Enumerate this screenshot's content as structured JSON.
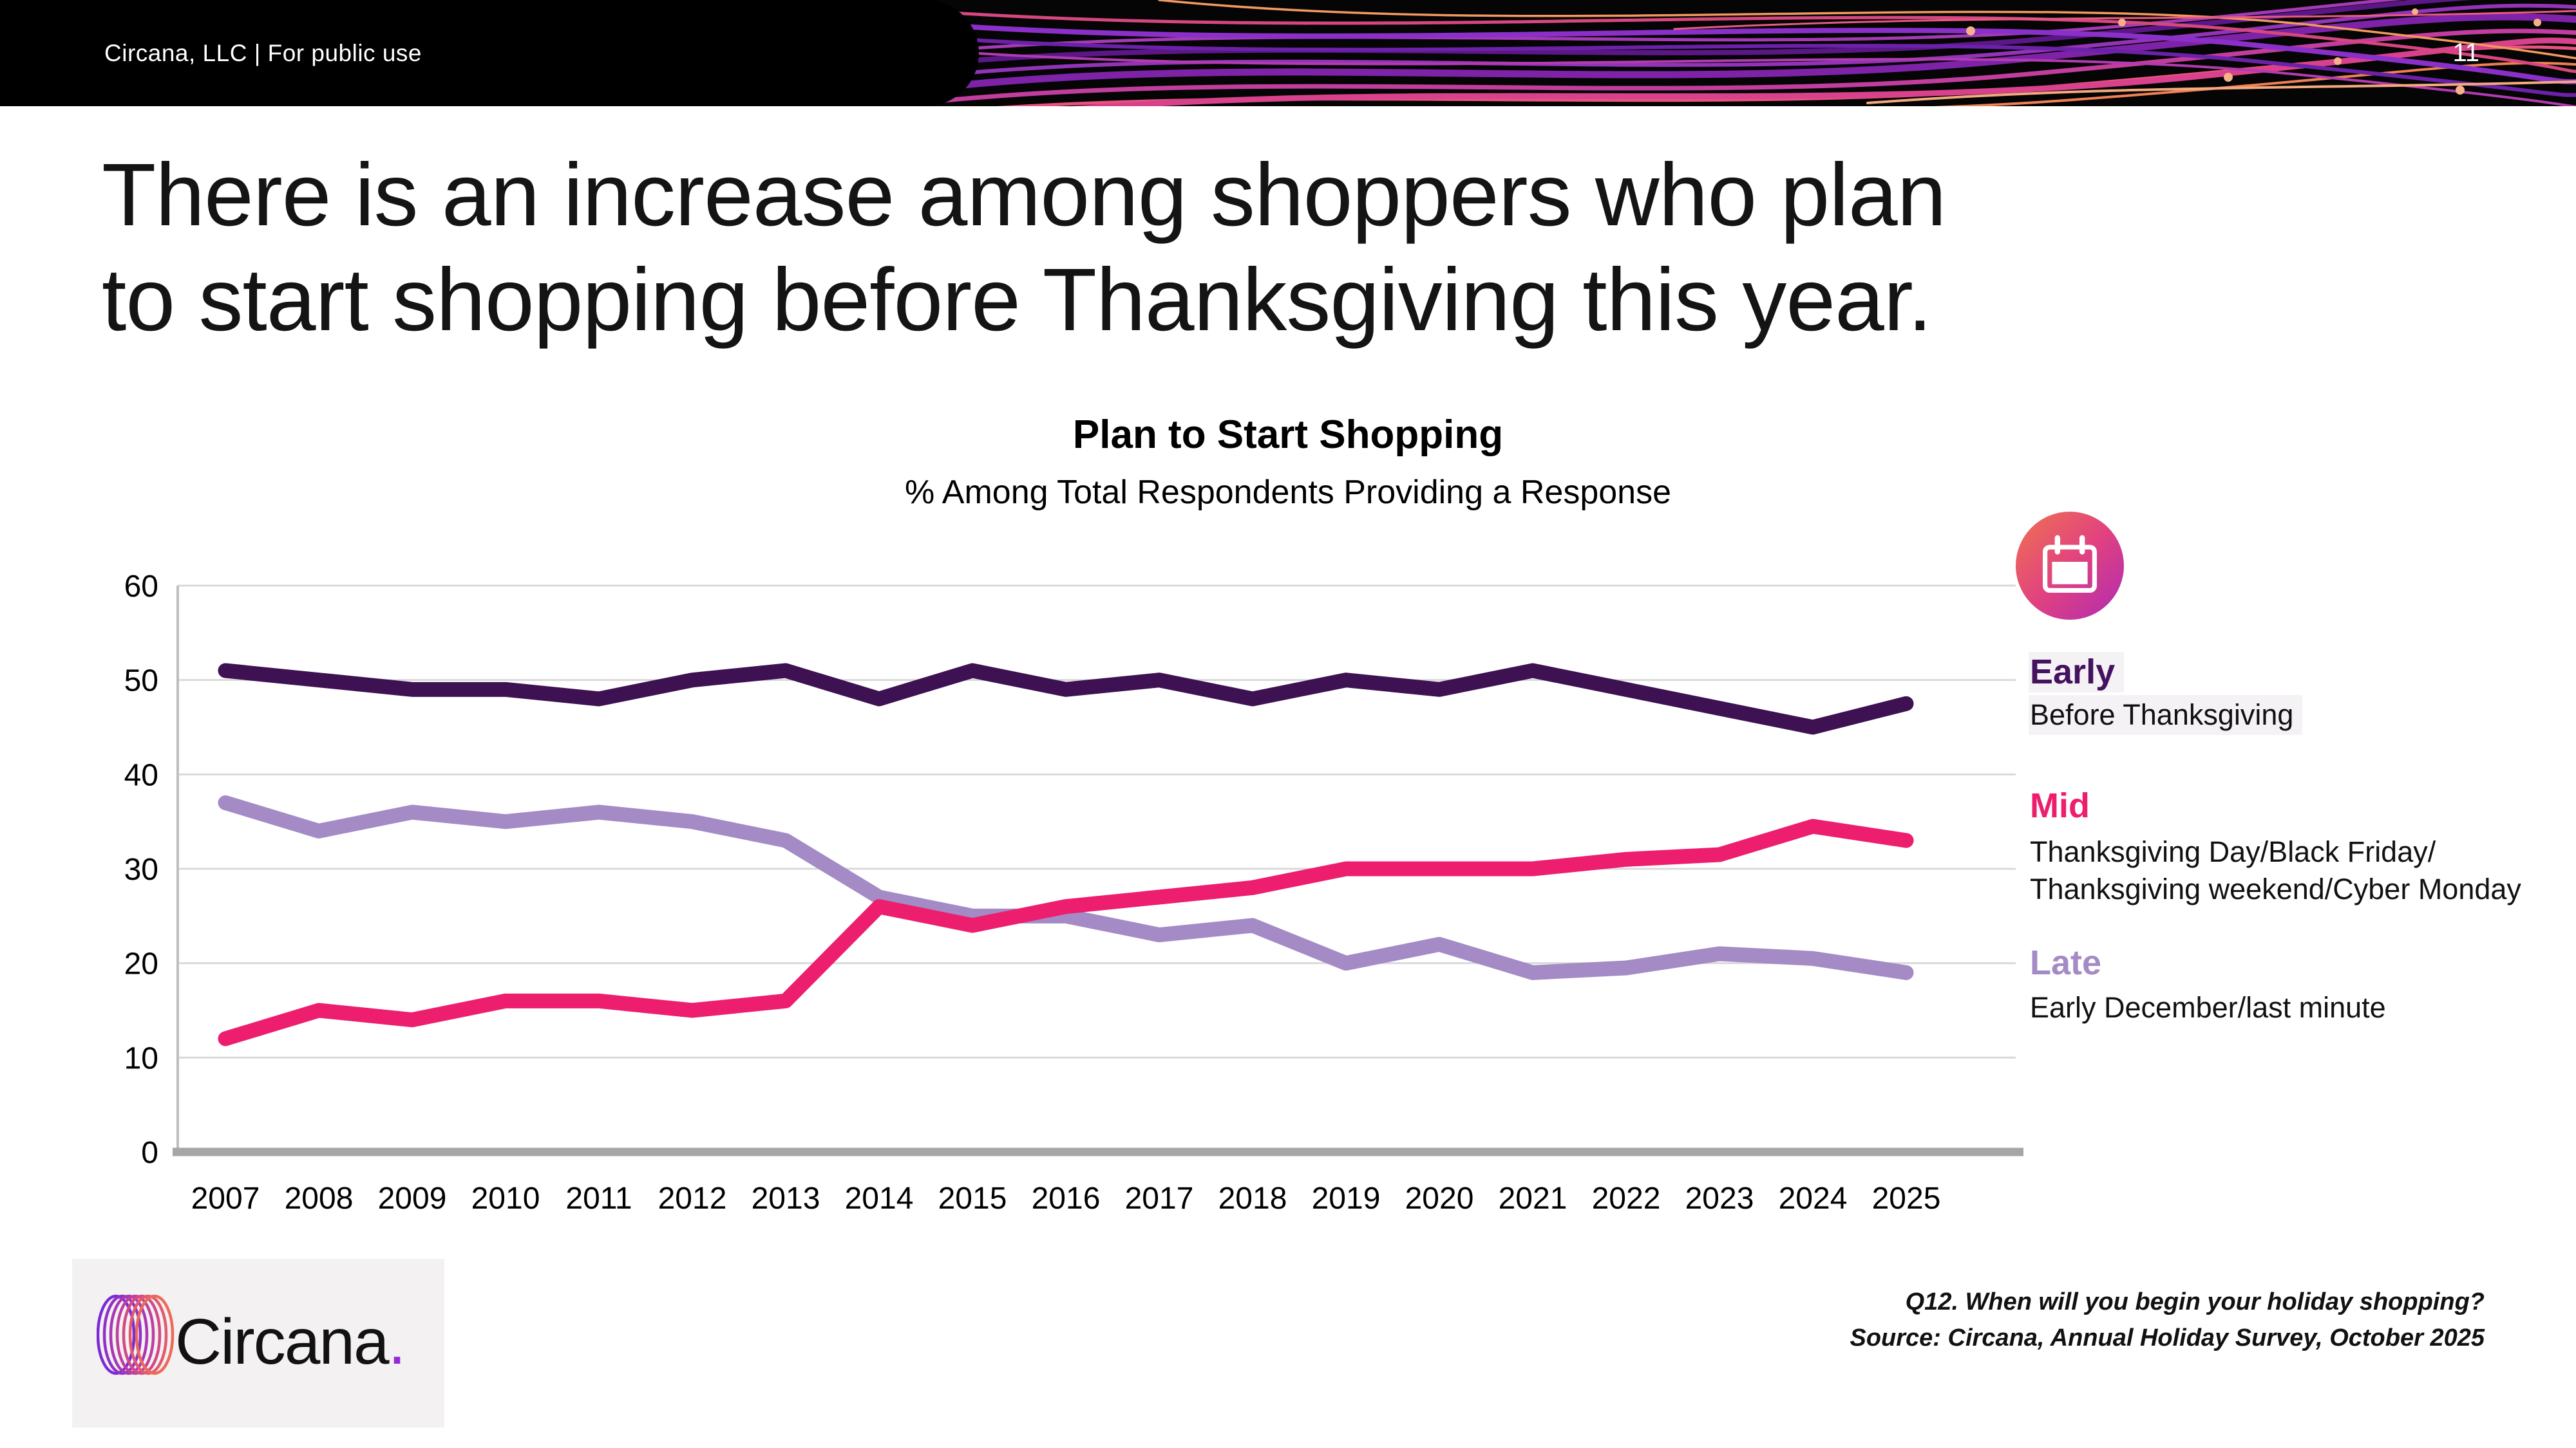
{
  "header": {
    "left_text": "Circana, LLC |  For public use",
    "page_number": "11"
  },
  "title": {
    "line1": "There is an increase among shoppers who plan",
    "line2": "to start shopping before Thanksgiving this year."
  },
  "chart": {
    "title": "Plan to Start Shopping",
    "subtitle": "% Among Total Respondents Providing a Response"
  },
  "chart_data": {
    "type": "line",
    "categories": [
      "2007",
      "2008",
      "2009",
      "2010",
      "2011",
      "2012",
      "2013",
      "2014",
      "2015",
      "2016",
      "2017",
      "2018",
      "2019",
      "2020",
      "2021",
      "2022",
      "2023",
      "2024",
      "2025"
    ],
    "series": [
      {
        "name": "Early",
        "color": "#3D1152",
        "values": [
          51,
          50,
          49,
          49,
          48,
          50,
          51,
          48,
          51,
          49,
          50,
          48,
          50,
          49,
          51,
          49,
          47,
          45,
          47.5
        ]
      },
      {
        "name": "Mid",
        "color": "#ED1E6E",
        "values": [
          12,
          15,
          14,
          16,
          16,
          15,
          16,
          26,
          24,
          26,
          27,
          28,
          30,
          30,
          30,
          31,
          31.5,
          34.5,
          33
        ]
      },
      {
        "name": "Late",
        "color": "#A48BC5",
        "values": [
          37,
          34,
          36,
          35,
          36,
          35,
          33,
          27,
          25,
          25,
          23,
          24,
          20,
          22,
          19,
          19.5,
          21,
          20.5,
          19
        ]
      }
    ],
    "title": "Plan to Start Shopping",
    "subtitle": "% Among Total Respondents Providing a Response",
    "xlabel": "",
    "ylabel": "",
    "ylim": [
      0,
      60
    ],
    "yticks": [
      0,
      10,
      20,
      30,
      40,
      50,
      60
    ],
    "grid": "horizontal",
    "legend_position": "right"
  },
  "legend": {
    "items": [
      {
        "label": "Early",
        "description": "Before Thanksgiving",
        "color": "#44125E"
      },
      {
        "label": "Mid",
        "description_line1": "Thanksgiving Day/Black Friday/",
        "description_line2": "Thanksgiving weekend/Cyber Monday",
        "color": "#ED1E6E"
      },
      {
        "label": "Late",
        "description": "Early December/last minute",
        "color": "#A48BC5"
      }
    ]
  },
  "footer": {
    "logo_text": "Circana",
    "logo_dot": ".",
    "source_line1": "Q12. When will you begin your holiday shopping?",
    "source_line2": "Source: Circana, Annual Holiday Survey, October 2025"
  }
}
